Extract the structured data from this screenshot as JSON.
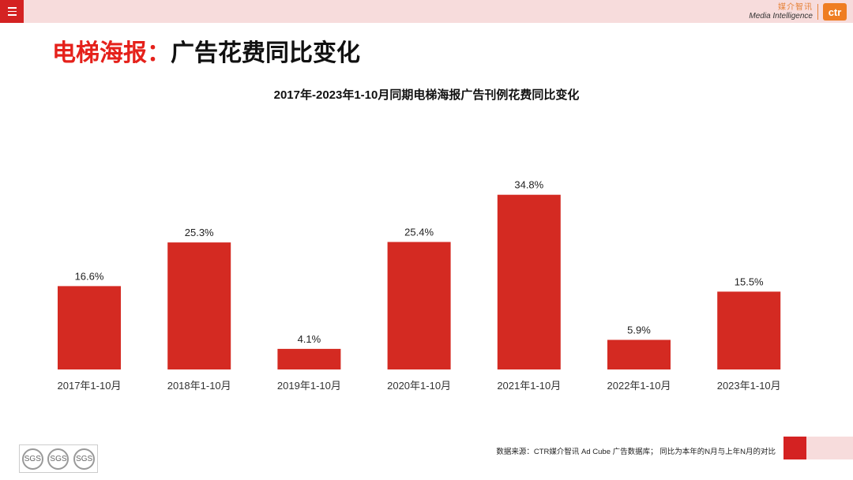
{
  "header": {
    "menu_icon": "hamburger-menu-icon",
    "brand_cn": "媒介智讯",
    "brand_en": "Media Intelligence",
    "brand_logo": "ctr"
  },
  "title": {
    "prefix": "电梯海报：",
    "main": "广告花费同比变化"
  },
  "colors": {
    "accent": "#e5211b",
    "bar": "#d42a22",
    "topbar": "#f7dcdc",
    "logo": "#ef7d22"
  },
  "chart_data": {
    "type": "bar",
    "title": "2017年-2023年1-10月同期电梯海报广告刊例花费同比变化",
    "categories": [
      "2017年1-10月",
      "2018年1-10月",
      "2019年1-10月",
      "2020年1-10月",
      "2021年1-10月",
      "2022年1-10月",
      "2023年1-10月"
    ],
    "values": [
      16.6,
      25.3,
      4.1,
      25.4,
      34.8,
      5.9,
      15.5
    ],
    "value_labels": [
      "16.6%",
      "25.3%",
      "4.1%",
      "25.4%",
      "34.8%",
      "5.9%",
      "15.5%"
    ],
    "xlabel": "",
    "ylabel": "",
    "ylim": [
      0,
      40
    ],
    "grid": false,
    "legend": "none"
  },
  "footer": {
    "source": "数据来源：CTR媒介智讯 Ad Cube 广告数据库； 同比为本年的N月与上年N月的对比",
    "badges": [
      "SGS",
      "SGS",
      "SGS"
    ]
  }
}
